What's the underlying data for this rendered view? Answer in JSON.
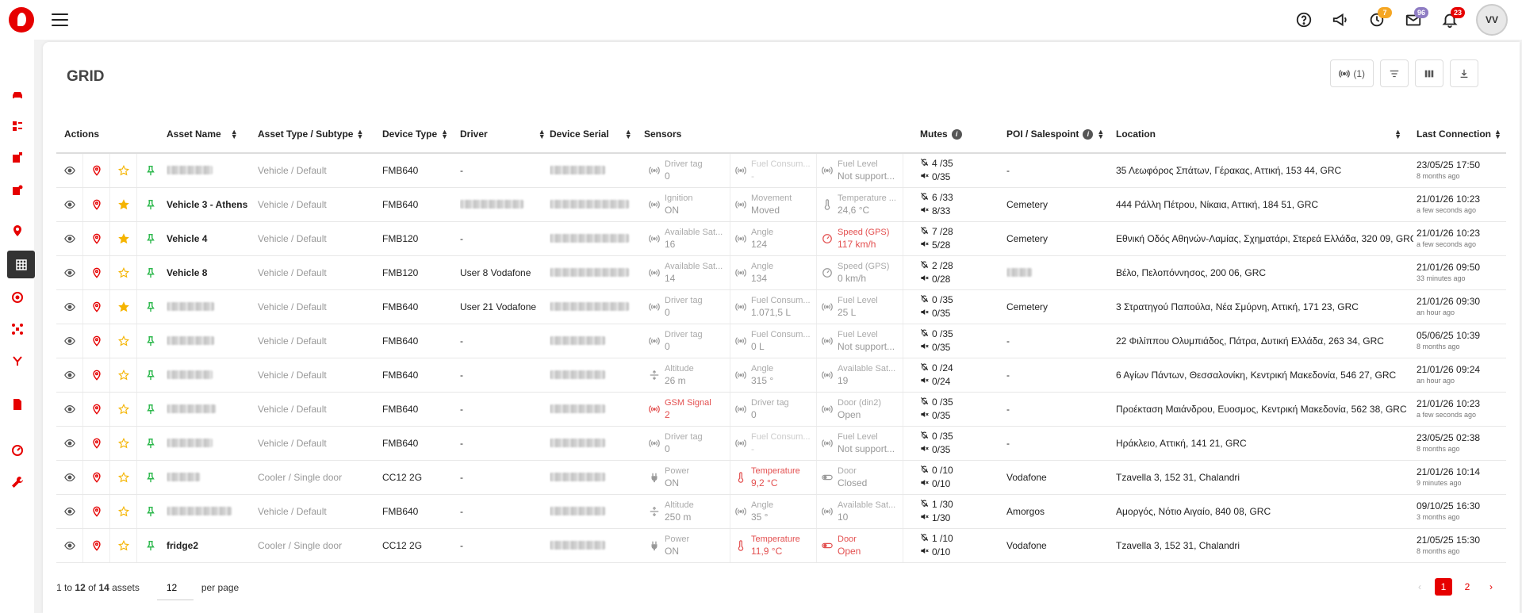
{
  "header": {
    "badges": {
      "activity": "7",
      "messages": "96",
      "notifications": "23"
    },
    "avatar_initials": "VV"
  },
  "colors": {
    "brand": "#e60000",
    "badge_activity": "#f5a623",
    "badge_messages": "#8e7cc3",
    "badge_notifications": "#e60000"
  },
  "sidebar": {
    "icons": [
      "car-icon",
      "alert-list-icon",
      "alert-settings-icon",
      "reports-alert-icon",
      "location-pin-icon",
      "grid-icon",
      "steering-icon",
      "drone-icon",
      "route-icon",
      "document-icon",
      "speedometer-icon",
      "wrench-icon"
    ]
  },
  "page": {
    "title": "GRID",
    "filter_count_label": "(1)"
  },
  "table": {
    "headers": {
      "actions": "Actions",
      "asset_name": "Asset Name",
      "asset_type": "Asset Type / Subtype",
      "device_type": "Device Type",
      "driver": "Driver",
      "device_serial": "Device Serial",
      "sensors": "Sensors",
      "mutes": "Mutes",
      "poi": "POI / Salespoint",
      "location": "Location",
      "last_connection": "Last Connection"
    },
    "rows": [
      {
        "name": "",
        "favorite": false,
        "type": "Vehicle / Default",
        "device": "FMB640",
        "driver": "-",
        "s1n": "Driver tag",
        "s1v": "0",
        "s1i": "signal",
        "s1s": "",
        "s2n": "Fuel Consum...",
        "s2v": "-",
        "s2i": "signal",
        "s2s": "dim",
        "s3n": "Fuel Level",
        "s3v": "Not support...",
        "s3i": "signal",
        "s3s": "",
        "m1": "4 /35",
        "m2": "0/35",
        "poi": "-",
        "location": "35 Λεωφόρος Σπάτων, Γέρακας, Αττική, 153 44, GRC",
        "lc": "23/05/25 17:50",
        "ago": "8 months ago"
      },
      {
        "name": "Vehicle 3 - Athens",
        "favorite": true,
        "type": "Vehicle / Default",
        "device": "FMB640",
        "driver": "",
        "s1n": "Ignition",
        "s1v": "ON",
        "s1i": "signal",
        "s1s": "",
        "s2n": "Movement",
        "s2v": "Moved",
        "s2i": "signal",
        "s2s": "",
        "s3n": "Temperature ...",
        "s3v": "24,6 °C",
        "s3i": "thermo",
        "s3s": "",
        "m1": "6 /33",
        "m2": "8/33",
        "poi": "Cemetery",
        "location": "444 Ράλλη Πέτρου, Νίκαια, Αττική, 184 51, GRC",
        "lc": "21/01/26 10:23",
        "ago": "a few seconds ago"
      },
      {
        "name": "Vehicle 4",
        "favorite": true,
        "type": "Vehicle / Default",
        "device": "FMB120",
        "driver": "-",
        "s1n": "Available Sat...",
        "s1v": "16",
        "s1i": "signal",
        "s1s": "",
        "s2n": "Angle",
        "s2v": "124",
        "s2i": "signal",
        "s2s": "",
        "s3n": "Speed (GPS)",
        "s3v": "117 km/h",
        "s3i": "gauge",
        "s3s": "red",
        "m1": "7 /28",
        "m2": "5/28",
        "poi": "Cemetery",
        "location": "Εθνική Οδός Αθηνών-Λαμίας, Σχηματάρι, Στερεά Ελλάδα, 320 09, GRC",
        "lc": "21/01/26 10:23",
        "ago": "a few seconds ago"
      },
      {
        "name": "Vehicle 8",
        "favorite": false,
        "type": "Vehicle / Default",
        "device": "FMB120",
        "driver": "User 8 Vodafone",
        "s1n": "Available Sat...",
        "s1v": "14",
        "s1i": "signal",
        "s1s": "",
        "s2n": "Angle",
        "s2v": "134",
        "s2i": "signal",
        "s2s": "",
        "s3n": "Speed (GPS)",
        "s3v": "0 km/h",
        "s3i": "gauge",
        "s3s": "",
        "m1": "2 /28",
        "m2": "0/28",
        "poi": "",
        "location": "Βέλο, Πελοπόννησος, 200 06, GRC",
        "lc": "21/01/26 09:50",
        "ago": "33 minutes ago"
      },
      {
        "name": "",
        "favorite": true,
        "type": "Vehicle / Default",
        "device": "FMB640",
        "driver": "User 21 Vodafone",
        "s1n": "Driver tag",
        "s1v": "0",
        "s1i": "signal",
        "s1s": "",
        "s2n": "Fuel Consum...",
        "s2v": "1.071,5 L",
        "s2i": "signal",
        "s2s": "",
        "s3n": "Fuel Level",
        "s3v": "25 L",
        "s3i": "signal",
        "s3s": "",
        "m1": "0 /35",
        "m2": "0/35",
        "poi": "Cemetery",
        "location": "3 Στρατηγού Παπούλα, Νέα Σμύρνη, Αττική, 171 23, GRC",
        "lc": "21/01/26 09:30",
        "ago": "an hour ago"
      },
      {
        "name": "",
        "favorite": false,
        "type": "Vehicle / Default",
        "device": "FMB640",
        "driver": "-",
        "s1n": "Driver tag",
        "s1v": "0",
        "s1i": "signal",
        "s1s": "",
        "s2n": "Fuel Consum...",
        "s2v": "0 L",
        "s2i": "signal",
        "s2s": "",
        "s3n": "Fuel Level",
        "s3v": "Not support...",
        "s3i": "signal",
        "s3s": "",
        "m1": "0 /35",
        "m2": "0/35",
        "poi": "-",
        "location": "22 Φιλίππου Ολυμπιάδος, Πάτρα, Δυτική Ελλάδα, 263 34, GRC",
        "lc": "05/06/25 10:39",
        "ago": "8 months ago"
      },
      {
        "name": "",
        "favorite": false,
        "type": "Vehicle / Default",
        "device": "FMB640",
        "driver": "-",
        "s1n": "Altitude",
        "s1v": "26 m",
        "s1i": "altitude",
        "s1s": "",
        "s2n": "Angle",
        "s2v": "315 °",
        "s2i": "signal",
        "s2s": "",
        "s3n": "Available Sat...",
        "s3v": "19",
        "s3i": "signal",
        "s3s": "",
        "m1": "0 /24",
        "m2": "0/24",
        "poi": "-",
        "location": "6 Αγίων Πάντων, Θεσσαλονίκη, Κεντρική Μακεδονία, 546 27, GRC",
        "lc": "21/01/26 09:24",
        "ago": "an hour ago"
      },
      {
        "name": "",
        "favorite": false,
        "type": "Vehicle / Default",
        "device": "FMB640",
        "driver": "-",
        "s1n": "GSM Signal",
        "s1v": "2",
        "s1i": "signal",
        "s1s": "red",
        "s2n": "Driver tag",
        "s2v": "0",
        "s2i": "signal",
        "s2s": "",
        "s3n": "Door (din2)",
        "s3v": "Open",
        "s3i": "signal",
        "s3s": "",
        "m1": "0 /35",
        "m2": "0/35",
        "poi": "-",
        "location": "Προέκταση Μαιάνδρου, Ευοσμος, Κεντρική Μακεδονία, 562 38, GRC",
        "lc": "21/01/26 10:23",
        "ago": "a few seconds ago"
      },
      {
        "name": "",
        "favorite": false,
        "type": "Vehicle / Default",
        "device": "FMB640",
        "driver": "-",
        "s1n": "Driver tag",
        "s1v": "0",
        "s1i": "signal",
        "s1s": "",
        "s2n": "Fuel Consum...",
        "s2v": "-",
        "s2i": "signal",
        "s2s": "dim",
        "s3n": "Fuel Level",
        "s3v": "Not support...",
        "s3i": "signal",
        "s3s": "",
        "m1": "0 /35",
        "m2": "0/35",
        "poi": "-",
        "location": "Ηράκλειο, Αττική, 141 21, GRC",
        "lc": "23/05/25 02:38",
        "ago": "8 months ago"
      },
      {
        "name": "",
        "favorite": false,
        "type": "Cooler / Single door",
        "device": "CC12 2G",
        "driver": "-",
        "s1n": "Power",
        "s1v": "ON",
        "s1i": "plug",
        "s1s": "",
        "s2n": "Temperature",
        "s2v": "9,2 °C",
        "s2i": "thermo",
        "s2s": "red",
        "s3n": "Door",
        "s3v": "Closed",
        "s3i": "toggle",
        "s3s": "",
        "m1": "0 /10",
        "m2": "0/10",
        "poi": "Vodafone",
        "location": "Tzavella 3, 152 31, Chalandri",
        "lc": "21/01/26 10:14",
        "ago": "9 minutes ago"
      },
      {
        "name": "",
        "favorite": false,
        "type": "Vehicle / Default",
        "device": "FMB640",
        "driver": "-",
        "s1n": "Altitude",
        "s1v": "250 m",
        "s1i": "altitude",
        "s1s": "",
        "s2n": "Angle",
        "s2v": "35 °",
        "s2i": "signal",
        "s2s": "",
        "s3n": "Available Sat...",
        "s3v": "10",
        "s3i": "signal",
        "s3s": "",
        "m1": "1 /30",
        "m2": "1/30",
        "poi": "Amorgos",
        "location": "Αμοργός, Νότιο Αιγαίο, 840 08, GRC",
        "lc": "09/10/25 16:30",
        "ago": "3 months ago"
      },
      {
        "name": "fridge2",
        "favorite": false,
        "type": "Cooler / Single door",
        "device": "CC12 2G",
        "driver": "-",
        "s1n": "Power",
        "s1v": "ON",
        "s1i": "plug",
        "s1s": "",
        "s2n": "Temperature",
        "s2v": "11,9 °C",
        "s2i": "thermo",
        "s2s": "red",
        "s3n": "Door",
        "s3v": "Open",
        "s3i": "toggle",
        "s3s": "red",
        "m1": "1 /10",
        "m2": "0/10",
        "poi": "Vodafone",
        "location": "Tzavella 3, 152 31, Chalandri",
        "lc": "21/05/25 15:30",
        "ago": "8 months ago"
      }
    ]
  },
  "footer": {
    "range_from": "1",
    "to_word": "to",
    "range_to": "12",
    "of_word": "of",
    "total": "14",
    "assets_word": "assets",
    "per_page_value": "12",
    "per_page_label": "per page",
    "pages": [
      "1",
      "2"
    ]
  }
}
